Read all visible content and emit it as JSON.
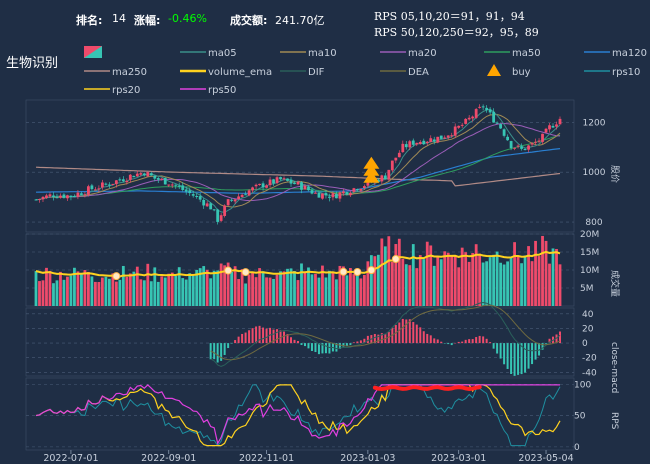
{
  "header": {
    "rank_label": "排名:",
    "rank_value": "14",
    "change_label": "涨幅:",
    "change_value": "-0.46%",
    "turnover_label": "成交额:",
    "turnover_value": "241.70亿",
    "rps_line1": "RPS 05,10,20＝91，91，94",
    "rps_line2": "RPS 50,120,250＝92，95，89",
    "title": "生物识别"
  },
  "colors": {
    "background": "#1f2e45",
    "up": "#ef4b6b",
    "down": "#37c5b4",
    "accent_change": "#00ff00"
  },
  "legend": [
    {
      "name": "",
      "color": "#ef4b6b",
      "kind": "candle"
    },
    {
      "name": "ma05",
      "color": "#3a8f8a",
      "kind": "line"
    },
    {
      "name": "ma10",
      "color": "#a08a55",
      "kind": "line"
    },
    {
      "name": "ma20",
      "color": "#9a5db8",
      "kind": "line"
    },
    {
      "name": "ma50",
      "color": "#2e9e5e",
      "kind": "line"
    },
    {
      "name": "ma120",
      "color": "#2a7fd1",
      "kind": "line"
    },
    {
      "name": "ma250",
      "color": "#b08a86",
      "kind": "line"
    },
    {
      "name": "volume_ema",
      "color": "#ffd21f",
      "kind": "line"
    },
    {
      "name": "DIF",
      "color": "#2a5f5a",
      "kind": "line"
    },
    {
      "name": "DEA",
      "color": "#6f6a40",
      "kind": "line"
    },
    {
      "name": "buy",
      "color": "#ffa500",
      "kind": "triangle"
    },
    {
      "name": "rps10",
      "color": "#1e8fa0",
      "kind": "line"
    },
    {
      "name": "rps20",
      "color": "#ffd21f",
      "kind": "line"
    },
    {
      "name": "rps50",
      "color": "#e040e0",
      "kind": "line"
    }
  ],
  "chart_data": [
    {
      "type": "candlestick",
      "ylabel": "股价",
      "yticks": [
        800,
        1000,
        1200
      ],
      "ylim": [
        760,
        1290
      ],
      "x_dates": [
        "2022-07-01",
        "2022-09-01",
        "2022-11-01",
        "2023-01-03",
        "2023-03-01",
        "2023-05-04"
      ],
      "price_path": [
        [
          0,
          890
        ],
        [
          5,
          910
        ],
        [
          10,
          905
        ],
        [
          15,
          930
        ],
        [
          20,
          950
        ],
        [
          25,
          975
        ],
        [
          28,
          990
        ],
        [
          31,
          1000
        ],
        [
          34,
          975
        ],
        [
          38,
          960
        ],
        [
          42,
          930
        ],
        [
          46,
          900
        ],
        [
          50,
          860
        ],
        [
          52,
          810
        ],
        [
          55,
          880
        ],
        [
          60,
          920
        ],
        [
          65,
          950
        ],
        [
          70,
          970
        ],
        [
          75,
          950
        ],
        [
          80,
          915
        ],
        [
          85,
          905
        ],
        [
          90,
          930
        ],
        [
          95,
          955
        ],
        [
          100,
          985
        ],
        [
          102,
          1040
        ],
        [
          105,
          1100
        ],
        [
          108,
          1120
        ],
        [
          112,
          1130
        ],
        [
          116,
          1140
        ],
        [
          120,
          1170
        ],
        [
          123,
          1200
        ],
        [
          126,
          1240
        ],
        [
          128,
          1265
        ],
        [
          130,
          1230
        ],
        [
          133,
          1180
        ],
        [
          136,
          1110
        ],
        [
          139,
          1090
        ],
        [
          142,
          1110
        ],
        [
          145,
          1140
        ],
        [
          147,
          1180
        ],
        [
          150,
          1215
        ]
      ],
      "ma120_path": [
        [
          0,
          920
        ],
        [
          30,
          925
        ],
        [
          60,
          915
        ],
        [
          90,
          925
        ],
        [
          110,
          980
        ],
        [
          130,
          1060
        ],
        [
          150,
          1095
        ]
      ],
      "ma250_path": [
        [
          0,
          1020
        ],
        [
          40,
          1000
        ],
        [
          80,
          985
        ],
        [
          106,
          970
        ],
        [
          114,
          968
        ],
        [
          119,
          965
        ],
        [
          120,
          945
        ],
        [
          135,
          970
        ],
        [
          150,
          995
        ]
      ],
      "buy_signals": [
        {
          "x": 96,
          "price": 990
        }
      ]
    },
    {
      "type": "bar",
      "ylabel": "成交量",
      "yticks": [
        "5M",
        "10M",
        "15M",
        "20M"
      ],
      "ylim": [
        0,
        20
      ]
    },
    {
      "type": "bar",
      "ylabel": "close-macd",
      "yticks": [
        40,
        20,
        0,
        -20,
        -40
      ],
      "ylim": [
        -45,
        48
      ]
    },
    {
      "type": "line",
      "ylabel": "RPS",
      "yticks": [
        100,
        50,
        0
      ],
      "ylim": [
        -5,
        110
      ]
    }
  ]
}
